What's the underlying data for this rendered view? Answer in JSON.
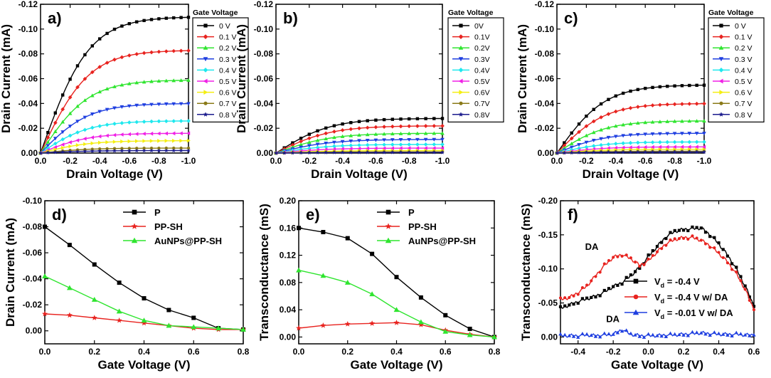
{
  "chart_data": [
    {
      "panel": "a)",
      "type": "line",
      "xlabel": "Drain Voltage (V)",
      "ylabel": "Drain Current (mA)",
      "xlim": [
        0,
        -1.0
      ],
      "ylim": [
        0,
        -0.12
      ],
      "xticks": [
        "0.0",
        "-0.2",
        "-0.4",
        "-0.6",
        "-0.8",
        "-1.0"
      ],
      "yticks": [
        "0.00",
        "-0.02",
        "-0.04",
        "-0.06",
        "-0.08",
        "-0.10",
        "-0.12"
      ],
      "legend_title": "Gate Voltage",
      "series": [
        {
          "name": "0 V",
          "sat": -0.11
        },
        {
          "name": "0.1 V",
          "sat": -0.083
        },
        {
          "name": "0.2 V",
          "sat": -0.059
        },
        {
          "name": "0.3 V",
          "sat": -0.04
        },
        {
          "name": "0.4 V",
          "sat": -0.026
        },
        {
          "name": "0.5 V",
          "sat": -0.016
        },
        {
          "name": "0.6 V",
          "sat": -0.01
        },
        {
          "name": "0.7 V",
          "sat": -0.004
        },
        {
          "name": "0.8 V",
          "sat": -0.002
        }
      ]
    },
    {
      "panel": "b)",
      "type": "line",
      "xlabel": "Drain Voltage (V)",
      "ylabel": "Drain Current (mA)",
      "xlim": [
        0,
        -1.0
      ],
      "ylim": [
        0,
        -0.12
      ],
      "xticks": [
        "0.0",
        "-0.2",
        "-0.4",
        "-0.6",
        "-0.8",
        "-1.0"
      ],
      "yticks": [
        "0.00",
        "-0.02",
        "-0.04",
        "-0.06",
        "-0.08",
        "-0.10",
        "-0.12"
      ],
      "legend_title": "Gate Voltage",
      "series": [
        {
          "name": "0V",
          "sat": -0.028
        },
        {
          "name": "0.1V",
          "sat": -0.022
        },
        {
          "name": "0.2V",
          "sat": -0.016
        },
        {
          "name": "0.3V",
          "sat": -0.011
        },
        {
          "name": "0.4V",
          "sat": -0.007
        },
        {
          "name": "0.5V",
          "sat": -0.004
        },
        {
          "name": "0.6V",
          "sat": -0.002
        },
        {
          "name": "0.7V",
          "sat": -0.001
        },
        {
          "name": "0.8V",
          "sat": -0.0005
        }
      ]
    },
    {
      "panel": "c)",
      "type": "line",
      "xlabel": "Drain Voltage (V)",
      "ylabel": "Drain Current (mA)",
      "xlim": [
        0,
        -1.0
      ],
      "ylim": [
        0,
        -0.12
      ],
      "xticks": [
        "0.0",
        "-0.2",
        "-0.4",
        "-0.6",
        "-0.8",
        "-1.0"
      ],
      "yticks": [
        "0.00",
        "-0.02",
        "-0.04",
        "-0.06",
        "-0.08",
        "-0.10",
        "-0.12"
      ],
      "legend_title": "Gate Voltage",
      "series": [
        {
          "name": "0 V",
          "sat": -0.055
        },
        {
          "name": "0.1 V",
          "sat": -0.04
        },
        {
          "name": "0.2 V",
          "sat": -0.026
        },
        {
          "name": "0.3 V",
          "sat": -0.016
        },
        {
          "name": "0.4 V",
          "sat": -0.009
        },
        {
          "name": "0.5 V",
          "sat": -0.005
        },
        {
          "name": "0.6 V",
          "sat": -0.003
        },
        {
          "name": "0.7 V",
          "sat": -0.0015
        },
        {
          "name": "0.8 V",
          "sat": -0.0008
        }
      ]
    },
    {
      "panel": "d)",
      "type": "line",
      "xlabel": "Gate Voltage (V)",
      "ylabel": "Drain Current (mA)",
      "xlim": [
        0,
        0.8
      ],
      "ylim": [
        0.01,
        -0.1
      ],
      "xticks": [
        "0.0",
        "0.2",
        "0.4",
        "0.6",
        "0.8"
      ],
      "yticks": [
        "0.00",
        "-0.02",
        "-0.04",
        "-0.06",
        "-0.08",
        "-0.10"
      ],
      "x": [
        0,
        0.1,
        0.2,
        0.3,
        0.4,
        0.5,
        0.6,
        0.7,
        0.8
      ],
      "series": [
        {
          "name": "P",
          "values": [
            -0.08,
            -0.066,
            -0.051,
            -0.037,
            -0.025,
            -0.016,
            -0.01,
            -0.002,
            -0.001
          ]
        },
        {
          "name": "PP-SH",
          "values": [
            -0.013,
            -0.012,
            -0.01,
            -0.008,
            -0.006,
            -0.004,
            -0.002,
            -0.001,
            -0.001
          ]
        },
        {
          "name": "AuNPs@PP-SH",
          "values": [
            -0.042,
            -0.033,
            -0.024,
            -0.015,
            -0.008,
            -0.004,
            -0.003,
            -0.002,
            -0.001
          ]
        }
      ]
    },
    {
      "panel": "e)",
      "type": "line",
      "xlabel": "Gate Voltage (V)",
      "ylabel": "Transconductance (mS)",
      "xlim": [
        0,
        0.8
      ],
      "ylim": [
        -0.01,
        0.2
      ],
      "xticks": [
        "0.0",
        "0.2",
        "0.4",
        "0.6",
        "0.8"
      ],
      "yticks": [
        "0.00",
        "0.04",
        "0.08",
        "0.12",
        "0.16",
        "0.20"
      ],
      "x": [
        0,
        0.1,
        0.2,
        0.3,
        0.4,
        0.5,
        0.6,
        0.7,
        0.8
      ],
      "series": [
        {
          "name": "P",
          "values": [
            0.16,
            0.154,
            0.145,
            0.122,
            0.088,
            0.058,
            0.032,
            0.012,
            0.0
          ]
        },
        {
          "name": "PP-SH",
          "values": [
            0.013,
            0.017,
            0.019,
            0.02,
            0.021,
            0.018,
            0.01,
            0.004,
            0.0
          ]
        },
        {
          "name": "AuNPs@PP-SH",
          "values": [
            0.098,
            0.09,
            0.08,
            0.063,
            0.04,
            0.022,
            0.008,
            0.003,
            0.0
          ]
        }
      ]
    },
    {
      "panel": "f)",
      "type": "line",
      "xlabel": "Gate Voltage (V)",
      "ylabel": "Transconductance (mS)",
      "xlim": [
        -0.5,
        0.6
      ],
      "ylim": [
        0.01,
        -0.2
      ],
      "xticks": [
        "-0.4",
        "-0.2",
        "0.0",
        "0.2",
        "0.4",
        "0.6"
      ],
      "yticks": [
        "0.00",
        "-0.05",
        "-0.10",
        "-0.15",
        "-0.20"
      ],
      "annotations": [
        "DA",
        "DA"
      ],
      "legend_prefix": "V",
      "legend_sub": "d",
      "series": [
        {
          "name": "= -0.4 V",
          "x": [
            -0.5,
            -0.45,
            -0.4,
            -0.35,
            -0.3,
            -0.25,
            -0.2,
            -0.15,
            -0.1,
            -0.05,
            0.0,
            0.05,
            0.1,
            0.15,
            0.2,
            0.25,
            0.3,
            0.35,
            0.4,
            0.45,
            0.5,
            0.55,
            0.6
          ],
          "values": [
            -0.042,
            -0.047,
            -0.052,
            -0.056,
            -0.06,
            -0.066,
            -0.074,
            -0.08,
            -0.09,
            -0.102,
            -0.118,
            -0.133,
            -0.147,
            -0.155,
            -0.158,
            -0.159,
            -0.16,
            -0.15,
            -0.137,
            -0.12,
            -0.1,
            -0.075,
            -0.045
          ]
        },
        {
          "name": "= -0.4 V w/ DA",
          "x": [
            -0.5,
            -0.45,
            -0.4,
            -0.35,
            -0.3,
            -0.25,
            -0.2,
            -0.15,
            -0.1,
            -0.05,
            0.0,
            0.05,
            0.1,
            0.15,
            0.2,
            0.25,
            0.3,
            0.35,
            0.4,
            0.45,
            0.5,
            0.55,
            0.6
          ],
          "values": [
            -0.055,
            -0.058,
            -0.065,
            -0.075,
            -0.09,
            -0.105,
            -0.117,
            -0.121,
            -0.115,
            -0.105,
            -0.112,
            -0.125,
            -0.137,
            -0.143,
            -0.146,
            -0.146,
            -0.142,
            -0.134,
            -0.123,
            -0.11,
            -0.093,
            -0.07,
            -0.04
          ]
        },
        {
          "name": "= -0.01 V w/ DA",
          "x": [
            -0.5,
            -0.45,
            -0.4,
            -0.35,
            -0.3,
            -0.25,
            -0.2,
            -0.15,
            -0.1,
            -0.05,
            0.0,
            0.05,
            0.1,
            0.15,
            0.2,
            0.25,
            0.3,
            0.35,
            0.4,
            0.45,
            0.5,
            0.55,
            0.6
          ],
          "values": [
            -0.002,
            -0.002,
            -0.002,
            -0.003,
            -0.002,
            -0.003,
            -0.004,
            -0.011,
            -0.004,
            -0.002,
            -0.002,
            -0.002,
            -0.003,
            -0.003,
            -0.004,
            -0.005,
            -0.006,
            -0.005,
            -0.004,
            -0.004,
            -0.004,
            -0.003,
            -0.003
          ]
        }
      ]
    }
  ],
  "colors": {
    "black": "#000000",
    "red": "#e8231f",
    "green": "#2fe52f",
    "blue": "#1f3fe0",
    "cyan": "#1fe8ee",
    "magenta": "#f020e6",
    "yellow": "#f4ee10",
    "olive": "#8a7a18",
    "navy": "#1a1a8c"
  }
}
